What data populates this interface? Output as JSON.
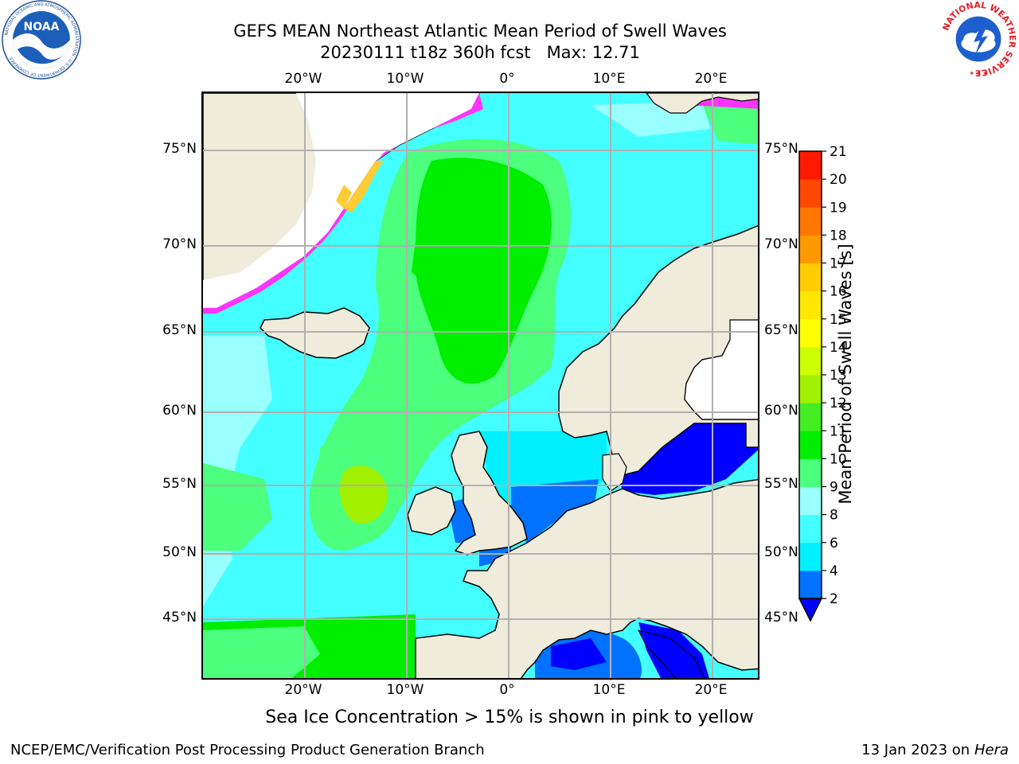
{
  "title": {
    "line1": "GEFS MEAN Northeast Atlantic Mean Period of Swell Waves",
    "line2": "20230111 t18z 360h fcst   Max: 12.71"
  },
  "map": {
    "top_lon_labels": [
      "20°W",
      "10°W",
      "0°",
      "10°E",
      "20°E"
    ],
    "bottom_lon_labels": [
      "20°W",
      "10°W",
      "0°",
      "10°E",
      "20°E"
    ],
    "left_lat_labels": [
      "75°N",
      "70°N",
      "65°N",
      "60°N",
      "55°N",
      "50°N",
      "45°N"
    ],
    "right_lat_labels": [
      "75°N",
      "70°N",
      "65°N",
      "60°N",
      "55°N",
      "50°N",
      "45°N"
    ],
    "land_color": "#efecdc",
    "ice_color": "#ff33ff",
    "ice_color_edge": "#ffcc33",
    "grid_color": "#b0b0b0"
  },
  "colorbar": {
    "label": "Mean Period of Swell Waves [s]",
    "tick_labels": [
      "2",
      "4",
      "6",
      "8",
      "9",
      "10",
      "11",
      "12",
      "13",
      "14",
      "15",
      "16",
      "17",
      "18",
      "19",
      "20",
      "21"
    ],
    "colors": [
      "#0072ff",
      "#00f0ff",
      "#44ffff",
      "#99ffff",
      "#4cff7c",
      "#00ee00",
      "#44ee22",
      "#a0f000",
      "#ccff00",
      "#ffff00",
      "#ffe800",
      "#ffcc00",
      "#ff9900",
      "#ff7700",
      "#ff4800",
      "#ff1a00"
    ],
    "under_color": "#0000ff"
  },
  "caption": "Sea Ice Concentration > 15% is shown in pink to yellow",
  "footer": {
    "left": "NCEP/EMC/Verification Post Processing Product Generation Branch",
    "date": "13 Jan 2023 on ",
    "host": "Hera"
  },
  "logos": {
    "noaa_text": "NOAA",
    "noaa_ring": "NATIONAL OCEANIC AND ATMOSPHERIC ADMINISTRATION · U.S. DEPARTMENT OF COMMERCE",
    "nws_ring": "NATIONAL WEATHER SERVICE"
  }
}
